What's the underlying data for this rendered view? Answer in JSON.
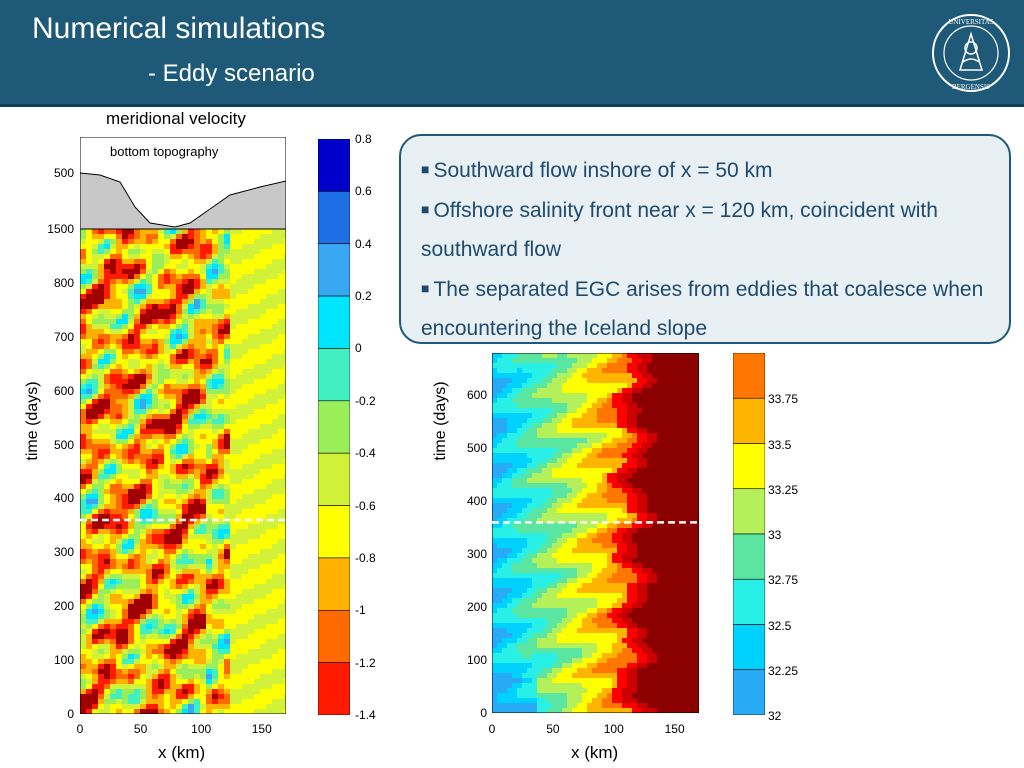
{
  "header": {
    "title": "Numerical simulations",
    "subtitle": "- Eddy scenario",
    "logo_icon": "universitas-bergensis-seal"
  },
  "colors": {
    "header_bg": "#1e5a78",
    "callout_border": "#1e5a78",
    "callout_text": "#1e4a6e"
  },
  "callout": {
    "bullets": [
      "Southward flow inshore of x = 50 km",
      "Offshore salinity front near x = 120 km, coincident with southward flow",
      "The separated EGC arises from eddies that coalesce when encountering the Iceland slope"
    ],
    "bullet_icon": "square-bullet"
  },
  "chart_data": [
    {
      "type": "heatmap",
      "title": "meridional velocity",
      "inset_label": "bottom topography",
      "xlabel": "x (km)",
      "ylabel": "time (days)",
      "xlim": [
        0,
        170
      ],
      "ylim": [
        0,
        900
      ],
      "x_ticks": [
        "0",
        "50",
        "100",
        "150"
      ],
      "y_ticks": [
        "0",
        "100",
        "200",
        "300",
        "400",
        "500",
        "600",
        "700",
        "800"
      ],
      "topo_ticks": [
        "1500",
        "500"
      ],
      "dashed_line_day": 360,
      "colorbar": {
        "labels": [
          "0.8",
          "0.6",
          "0.4",
          "0.2",
          "0",
          "-0.2",
          "-0.4",
          "-0.6",
          "-0.8",
          "-1",
          "-1.2",
          "-1.4"
        ],
        "colors": [
          "#0000cd",
          "#1e6ee6",
          "#3aa7f2",
          "#00e5ff",
          "#40f0c0",
          "#9aee5a",
          "#d2f23a",
          "#ffff00",
          "#ffb300",
          "#ff6a00",
          "#ff1a00",
          "#a00000"
        ]
      }
    },
    {
      "type": "heatmap",
      "title": "",
      "xlabel": "x (km)",
      "ylabel": "time (days)",
      "xlim": [
        0,
        170
      ],
      "ylim": [
        0,
        680
      ],
      "x_ticks": [
        "0",
        "50",
        "100",
        "150"
      ],
      "y_ticks": [
        "0",
        "100",
        "200",
        "300",
        "400",
        "500",
        "600"
      ],
      "dashed_line_day": 360,
      "colorbar": {
        "labels": [
          "33.75",
          "33.5",
          "33.25",
          "33",
          "32.75",
          "32.5",
          "32.25",
          "32"
        ],
        "colors": [
          "#ff7700",
          "#ffb400",
          "#ffff00",
          "#b4f05a",
          "#5ae6a0",
          "#28f0e6",
          "#00d2ff",
          "#28aaf5"
        ]
      }
    }
  ]
}
